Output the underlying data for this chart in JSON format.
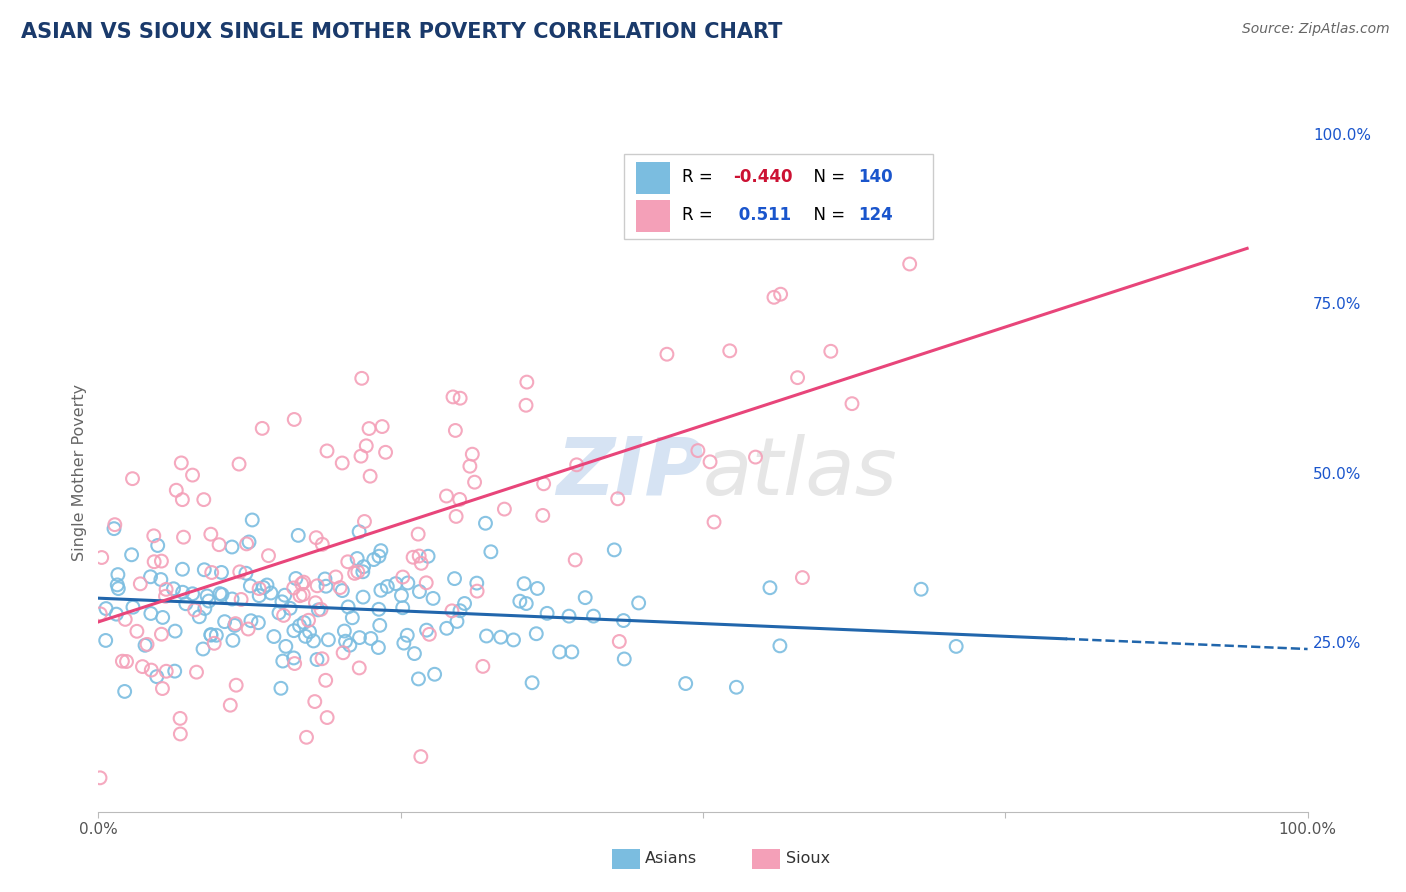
{
  "title": "ASIAN VS SIOUX SINGLE MOTHER POVERTY CORRELATION CHART",
  "source": "Source: ZipAtlas.com",
  "ylabel": "Single Mother Poverty",
  "xlim": [
    0,
    1
  ],
  "ylim": [
    0,
    1
  ],
  "yticks_right": [
    0.25,
    0.5,
    0.75,
    1.0
  ],
  "yticklabels_right": [
    "25.0%",
    "50.0%",
    "75.0%",
    "100.0%"
  ],
  "asian_color": "#7bbde0",
  "sioux_color": "#f4a0b8",
  "asian_R": -0.44,
  "asian_N": 140,
  "sioux_R": 0.511,
  "sioux_N": 124,
  "legend_R_neg_color": "#cc1133",
  "legend_R_pos_color": "#1a55cc",
  "legend_N_color": "#1a55cc",
  "background_color": "#ffffff",
  "grid_color": "#dddddd",
  "title_color": "#1a3a6b",
  "axis_label_color": "#666666",
  "right_tick_color": "#1a55cc",
  "asian_line_color": "#2166ac",
  "sioux_line_color": "#e8457a",
  "asian_scatter_seed": 42,
  "sioux_scatter_seed": 77,
  "asian_line_solid_end": 0.8,
  "asian_line_dashed_end": 1.0,
  "sioux_line_end": 0.95,
  "asian_line_intercept": 0.315,
  "asian_line_slope": -0.075,
  "sioux_line_intercept": 0.28,
  "sioux_line_slope": 0.58
}
